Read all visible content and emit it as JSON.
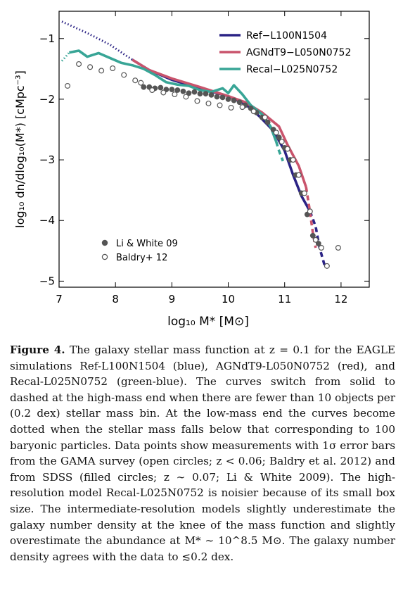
{
  "chart_data": {
    "type": "line",
    "xlabel": "log₁₀ M* [M⊙]",
    "ylabel": "log₁₀ dn/dlog₁₀(M*) [cMpc⁻³]",
    "xlim": [
      7,
      12.5
    ],
    "ylim": [
      -5.1,
      -0.55
    ],
    "x_ticks": [
      7,
      8,
      9,
      10,
      11,
      12
    ],
    "y_ticks": [
      -1,
      -2,
      -3,
      -4,
      -5
    ],
    "x_tick_labels": [
      "7",
      "8",
      "9",
      "10",
      "11",
      "12"
    ],
    "y_tick_labels": [
      "−1",
      "−2",
      "−3",
      "−4",
      "−5"
    ],
    "grid": false,
    "legend_position": "top-right",
    "series": [
      {
        "name": "Ref−L100N1504",
        "color": "#2b2385",
        "dotted": [
          [
            7.05,
            -0.72
          ],
          [
            7.5,
            -0.91
          ],
          [
            7.9,
            -1.1
          ],
          [
            8.3,
            -1.35
          ]
        ],
        "solid": [
          [
            8.3,
            -1.35
          ],
          [
            8.6,
            -1.52
          ],
          [
            9.0,
            -1.68
          ],
          [
            9.5,
            -1.82
          ],
          [
            10.0,
            -1.95
          ],
          [
            10.3,
            -2.08
          ],
          [
            10.55,
            -2.28
          ],
          [
            10.8,
            -2.52
          ],
          [
            11.0,
            -2.85
          ],
          [
            11.15,
            -3.25
          ],
          [
            11.3,
            -3.6
          ],
          [
            11.45,
            -3.85
          ]
        ],
        "dashed": [
          [
            11.45,
            -3.85
          ],
          [
            11.55,
            -4.1
          ],
          [
            11.62,
            -4.45
          ],
          [
            11.72,
            -4.78
          ]
        ]
      },
      {
        "name": "AGNdT9−L050N0752",
        "color": "#c9546c",
        "solid": [
          [
            8.3,
            -1.35
          ],
          [
            8.6,
            -1.52
          ],
          [
            9.0,
            -1.66
          ],
          [
            9.5,
            -1.8
          ],
          [
            10.0,
            -1.95
          ],
          [
            10.3,
            -2.05
          ],
          [
            10.6,
            -2.22
          ],
          [
            10.9,
            -2.45
          ],
          [
            11.05,
            -2.75
          ],
          [
            11.25,
            -3.1
          ],
          [
            11.38,
            -3.45
          ]
        ],
        "dashed": [
          [
            11.38,
            -3.45
          ],
          [
            11.44,
            -3.8
          ],
          [
            11.5,
            -4.2
          ],
          [
            11.55,
            -4.45
          ]
        ]
      },
      {
        "name": "Recal−L025N0752",
        "color": "#38a596",
        "dotted": [
          [
            7.05,
            -1.37
          ],
          [
            7.1,
            -1.32
          ],
          [
            7.18,
            -1.23
          ]
        ],
        "solid": [
          [
            7.18,
            -1.23
          ],
          [
            7.35,
            -1.2
          ],
          [
            7.5,
            -1.3
          ],
          [
            7.7,
            -1.24
          ],
          [
            7.9,
            -1.32
          ],
          [
            8.1,
            -1.4
          ],
          [
            8.3,
            -1.44
          ],
          [
            8.5,
            -1.5
          ],
          [
            8.7,
            -1.6
          ],
          [
            8.9,
            -1.72
          ],
          [
            9.1,
            -1.76
          ],
          [
            9.3,
            -1.78
          ],
          [
            9.5,
            -1.85
          ],
          [
            9.7,
            -1.88
          ],
          [
            9.9,
            -1.82
          ],
          [
            10.0,
            -1.9
          ],
          [
            10.1,
            -1.77
          ],
          [
            10.25,
            -1.92
          ],
          [
            10.4,
            -2.1
          ],
          [
            10.6,
            -2.25
          ],
          [
            10.75,
            -2.45
          ],
          [
            10.85,
            -2.7
          ]
        ],
        "dashed": [
          [
            10.85,
            -2.7
          ],
          [
            10.9,
            -2.85
          ],
          [
            10.97,
            -3.02
          ]
        ]
      },
      {
        "name": "Li & White 09",
        "marker": "filled",
        "points": [
          [
            8.5,
            -1.8
          ],
          [
            8.6,
            -1.8
          ],
          [
            8.7,
            -1.82
          ],
          [
            8.8,
            -1.81
          ],
          [
            8.9,
            -1.84
          ],
          [
            9.0,
            -1.84
          ],
          [
            9.1,
            -1.85
          ],
          [
            9.2,
            -1.87
          ],
          [
            9.3,
            -1.9
          ],
          [
            9.4,
            -1.88
          ],
          [
            9.5,
            -1.91
          ],
          [
            9.6,
            -1.91
          ],
          [
            9.7,
            -1.93
          ],
          [
            9.8,
            -1.96
          ],
          [
            9.9,
            -1.97
          ],
          [
            10.0,
            -2.0
          ],
          [
            10.1,
            -2.02
          ],
          [
            10.2,
            -2.05
          ],
          [
            10.3,
            -2.1
          ],
          [
            10.4,
            -2.15
          ],
          [
            10.5,
            -2.22
          ],
          [
            10.6,
            -2.3
          ],
          [
            10.7,
            -2.38
          ],
          [
            10.8,
            -2.5
          ],
          [
            10.9,
            -2.63
          ],
          [
            11.0,
            -2.8
          ],
          [
            11.1,
            -3.0
          ],
          [
            11.2,
            -3.25
          ],
          [
            11.3,
            -3.55
          ],
          [
            11.4,
            -3.9
          ],
          [
            11.5,
            -4.25
          ],
          [
            11.6,
            -4.38
          ]
        ]
      },
      {
        "name": "Baldry+ 12",
        "marker": "open",
        "points": [
          [
            7.15,
            -1.78
          ],
          [
            7.35,
            -1.42
          ],
          [
            7.55,
            -1.47
          ],
          [
            7.75,
            -1.53
          ],
          [
            7.95,
            -1.49
          ],
          [
            8.15,
            -1.6
          ],
          [
            8.35,
            -1.69
          ],
          [
            8.45,
            -1.73
          ],
          [
            8.65,
            -1.85
          ],
          [
            8.85,
            -1.89
          ],
          [
            9.05,
            -1.92
          ],
          [
            9.25,
            -1.96
          ],
          [
            9.45,
            -2.03
          ],
          [
            9.65,
            -2.07
          ],
          [
            9.85,
            -2.1
          ],
          [
            10.05,
            -2.14
          ],
          [
            10.25,
            -2.13
          ],
          [
            10.45,
            -2.2
          ],
          [
            10.65,
            -2.3
          ],
          [
            10.85,
            -2.55
          ],
          [
            10.95,
            -2.7
          ],
          [
            11.05,
            -2.82
          ],
          [
            11.15,
            -3.0
          ],
          [
            11.25,
            -3.25
          ],
          [
            11.35,
            -3.55
          ],
          [
            11.45,
            -3.85
          ],
          [
            11.55,
            -4.32
          ],
          [
            11.65,
            -4.45
          ],
          [
            11.75,
            -4.75
          ],
          [
            11.95,
            -4.45
          ]
        ]
      }
    ]
  },
  "caption": {
    "label": "Figure 4.",
    "text": "The galaxy stellar mass function at z = 0.1 for the EAGLE simulations Ref-L100N1504 (blue), AGNdT9-L050N0752 (red), and Recal-L025N0752 (green-blue). The curves switch from solid to dashed at the high-mass end when there are fewer than 10 objects per (0.2 dex) stellar mass bin. At the low-mass end the curves become dotted when the stellar mass falls below that corresponding to 100 baryonic particles. Data points show measurements with 1σ error bars from the GAMA survey (open circles; z < 0.06; Baldry et al. 2012) and from SDSS (filled circles; z ∼ 0.07; Li & White 2009). The high-resolution model Recal-L025N0752 is noisier because of its small box size. The intermediate-resolution models slightly underestimate the galaxy number density at the knee of the mass function and slightly overestimate the abundance at M* ∼ 10^8.5 M⊙. The galaxy number density agrees with the data to ≲0.2 dex."
  }
}
